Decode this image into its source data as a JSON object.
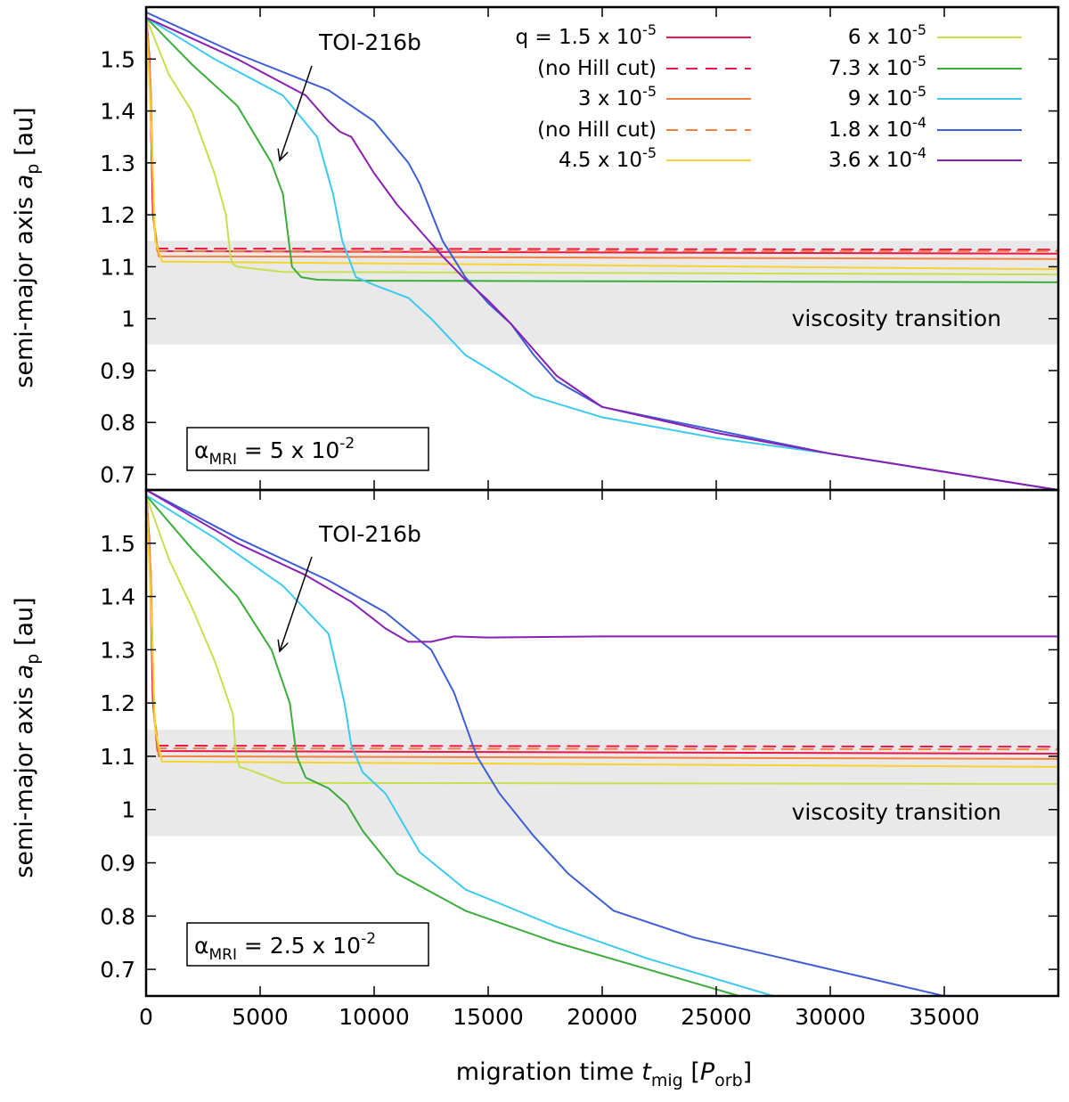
{
  "figure": {
    "xlabel_main": "migration time ",
    "xlabel_sym": "t",
    "xlabel_sub": "mig",
    "xlabel_unit_open": " [",
    "xlabel_unit_sym": "P",
    "xlabel_unit_sub": "orb",
    "xlabel_unit_close": "]",
    "ylabel_main": "semi-major axis ",
    "ylabel_sym": "a",
    "ylabel_sub": "p",
    "ylabel_unit": " [au]",
    "band_label": "viscosity transition",
    "arrow_label": "TOI-216b"
  },
  "legend": {
    "left": [
      {
        "label": "q = 1.5 x 10",
        "exp": "-5",
        "color": "#e8174c",
        "dash": "solid"
      },
      {
        "label": "(no Hill cut)",
        "exp": "",
        "color": "#e8174c",
        "dash": "dashed"
      },
      {
        "label": "3 x 10",
        "exp": "-5",
        "color": "#f2803f",
        "dash": "solid"
      },
      {
        "label": "(no Hill cut)",
        "exp": "",
        "color": "#f2803f",
        "dash": "dashed"
      },
      {
        "label": "4.5 x 10",
        "exp": "-5",
        "color": "#f8d42a",
        "dash": "solid"
      }
    ],
    "right": [
      {
        "label": "6 x 10",
        "exp": "-5",
        "color": "#c4e24e",
        "dash": "solid"
      },
      {
        "label": "7.3 x 10",
        "exp": "-5",
        "color": "#3aad3a",
        "dash": "solid"
      },
      {
        "label": "9 x 10",
        "exp": "-5",
        "color": "#3ccbef",
        "dash": "solid"
      },
      {
        "label": "1.8 x 10",
        "exp": "-4",
        "color": "#3d5ed6",
        "dash": "solid"
      },
      {
        "label": "3.6 x 10",
        "exp": "-4",
        "color": "#8a1fb4",
        "dash": "solid"
      }
    ]
  },
  "panels": [
    {
      "alpha_sym": "α",
      "alpha_sub": "MRI",
      "alpha_text": " = 5 x 10",
      "alpha_exp": "-2"
    },
    {
      "alpha_sym": "α",
      "alpha_sub": "MRI",
      "alpha_text": " = 2.5 x 10",
      "alpha_exp": "-2"
    }
  ],
  "chart_data": [
    {
      "type": "line",
      "title": "",
      "xlabel": "migration time t_mig [P_orb]",
      "ylabel": "semi-major axis a_p [au]",
      "xlim": [
        0,
        40000
      ],
      "ylim": [
        0.67,
        1.6
      ],
      "xticks": [
        0,
        5000,
        10000,
        15000,
        20000,
        25000,
        30000,
        35000
      ],
      "yticks": [
        0.7,
        0.8,
        0.9,
        1,
        1.1,
        1.2,
        1.3,
        1.4,
        1.5
      ],
      "band": [
        0.95,
        1.15
      ],
      "annotation_point": [
        5800,
        1.3
      ],
      "series": [
        {
          "name": "q = 1.5e-5",
          "color": "#e8174c",
          "dash": "solid",
          "x": [
            0,
            150,
            300,
            500,
            40000
          ],
          "y": [
            1.59,
            1.5,
            1.2,
            1.13,
            1.125
          ]
        },
        {
          "name": "q = 1.5e-5 (no Hill cut)",
          "color": "#e8174c",
          "dash": "dashed",
          "x": [
            0,
            150,
            300,
            500,
            40000
          ],
          "y": [
            1.59,
            1.5,
            1.2,
            1.135,
            1.133
          ]
        },
        {
          "name": "q = 3e-5",
          "color": "#f2803f",
          "dash": "solid",
          "x": [
            0,
            200,
            350,
            550,
            40000
          ],
          "y": [
            1.59,
            1.45,
            1.18,
            1.12,
            1.115
          ]
        },
        {
          "name": "q = 3e-5 (no Hill cut)",
          "color": "#f2803f",
          "dash": "dashed",
          "x": [
            0,
            200,
            350,
            550,
            40000
          ],
          "y": [
            1.59,
            1.45,
            1.18,
            1.13,
            1.13
          ]
        },
        {
          "name": "q = 4.5e-5",
          "color": "#f8d42a",
          "dash": "solid",
          "x": [
            0,
            200,
            400,
            700,
            40000
          ],
          "y": [
            1.59,
            1.4,
            1.15,
            1.11,
            1.095
          ]
        },
        {
          "name": "q = 6e-5",
          "color": "#c4e24e",
          "dash": "solid",
          "x": [
            0,
            1000,
            2000,
            3000,
            3500,
            3700,
            3800,
            4000,
            6000,
            40000
          ],
          "y": [
            1.58,
            1.47,
            1.4,
            1.28,
            1.2,
            1.12,
            1.105,
            1.1,
            1.09,
            1.085
          ]
        },
        {
          "name": "q = 7.3e-5",
          "color": "#3aad3a",
          "dash": "solid",
          "x": [
            0,
            2000,
            4000,
            5500,
            6000,
            6200,
            6400,
            6800,
            7500,
            10000,
            40000
          ],
          "y": [
            1.58,
            1.49,
            1.41,
            1.3,
            1.24,
            1.17,
            1.1,
            1.08,
            1.075,
            1.073,
            1.07
          ]
        },
        {
          "name": "q = 9e-5",
          "color": "#3ccbef",
          "dash": "solid",
          "x": [
            0,
            3000,
            6000,
            7500,
            8200,
            8600,
            9200,
            10000,
            11500,
            12500,
            14000,
            17000,
            20000,
            25000,
            30000,
            35000,
            40000
          ],
          "y": [
            1.58,
            1.5,
            1.43,
            1.35,
            1.24,
            1.15,
            1.08,
            1.065,
            1.04,
            1.0,
            0.93,
            0.85,
            0.81,
            0.77,
            0.74,
            0.705,
            0.67
          ]
        },
        {
          "name": "q = 1.8e-4",
          "color": "#3d5ed6",
          "dash": "solid",
          "x": [
            0,
            4000,
            8000,
            10000,
            11500,
            12000,
            13000,
            14000,
            15000,
            16000,
            17000,
            18000,
            20000,
            25000,
            30000,
            35000,
            40000
          ],
          "y": [
            1.59,
            1.51,
            1.44,
            1.38,
            1.3,
            1.26,
            1.15,
            1.08,
            1.03,
            0.99,
            0.93,
            0.88,
            0.83,
            0.785,
            0.74,
            0.705,
            0.67
          ]
        },
        {
          "name": "q = 3.6e-4",
          "color": "#8a1fb4",
          "dash": "solid",
          "x": [
            0,
            4000,
            7000,
            8000,
            8500,
            9000,
            10000,
            11000,
            12000,
            13000,
            14000,
            15000,
            16000,
            18000,
            20000,
            25000,
            30000,
            35000,
            40000
          ],
          "y": [
            1.58,
            1.5,
            1.43,
            1.38,
            1.36,
            1.35,
            1.28,
            1.22,
            1.17,
            1.12,
            1.075,
            1.035,
            0.99,
            0.89,
            0.83,
            0.78,
            0.74,
            0.705,
            0.67
          ]
        }
      ]
    },
    {
      "type": "line",
      "title": "",
      "xlabel": "migration time t_mig [P_orb]",
      "ylabel": "semi-major axis a_p [au]",
      "xlim": [
        0,
        40000
      ],
      "ylim": [
        0.65,
        1.6
      ],
      "xticks": [
        0,
        5000,
        10000,
        15000,
        20000,
        25000,
        30000,
        35000
      ],
      "yticks": [
        0.7,
        0.8,
        0.9,
        1,
        1.1,
        1.2,
        1.3,
        1.4,
        1.5
      ],
      "band": [
        0.95,
        1.15
      ],
      "annotation_point": [
        5800,
        1.3
      ],
      "series": [
        {
          "name": "q = 1.5e-5",
          "color": "#e8174c",
          "dash": "solid",
          "x": [
            0,
            150,
            300,
            500,
            40000
          ],
          "y": [
            1.6,
            1.5,
            1.2,
            1.11,
            1.105
          ]
        },
        {
          "name": "q = 1.5e-5 (no Hill cut)",
          "color": "#e8174c",
          "dash": "dashed",
          "x": [
            0,
            150,
            300,
            500,
            40000
          ],
          "y": [
            1.6,
            1.5,
            1.2,
            1.12,
            1.118
          ]
        },
        {
          "name": "q = 3e-5",
          "color": "#f2803f",
          "dash": "solid",
          "x": [
            0,
            200,
            350,
            550,
            40000
          ],
          "y": [
            1.6,
            1.45,
            1.18,
            1.1,
            1.095
          ]
        },
        {
          "name": "q = 3e-5 (no Hill cut)",
          "color": "#f2803f",
          "dash": "dashed",
          "x": [
            0,
            200,
            350,
            550,
            40000
          ],
          "y": [
            1.6,
            1.45,
            1.18,
            1.115,
            1.113
          ]
        },
        {
          "name": "q = 4.5e-5",
          "color": "#f8d42a",
          "dash": "solid",
          "x": [
            0,
            200,
            400,
            700,
            40000
          ],
          "y": [
            1.6,
            1.4,
            1.15,
            1.09,
            1.08
          ]
        },
        {
          "name": "q = 6e-5",
          "color": "#c4e24e",
          "dash": "solid",
          "x": [
            0,
            1000,
            2000,
            3000,
            3800,
            3950,
            4100,
            4500,
            6000,
            40000
          ],
          "y": [
            1.59,
            1.47,
            1.38,
            1.28,
            1.18,
            1.1,
            1.08,
            1.075,
            1.05,
            1.048
          ]
        },
        {
          "name": "q = 7.3e-5",
          "color": "#3aad3a",
          "dash": "solid",
          "x": [
            0,
            2000,
            4000,
            5500,
            6300,
            6600,
            7000,
            8000,
            8800,
            9500,
            11000,
            14000,
            18000,
            22000,
            26000
          ],
          "y": [
            1.59,
            1.49,
            1.4,
            1.3,
            1.2,
            1.1,
            1.06,
            1.04,
            1.01,
            0.96,
            0.88,
            0.81,
            0.75,
            0.7,
            0.65
          ]
        },
        {
          "name": "q = 9e-5",
          "color": "#3ccbef",
          "dash": "solid",
          "x": [
            0,
            3000,
            6000,
            8000,
            8700,
            9000,
            9500,
            10500,
            12000,
            14000,
            18000,
            22000,
            27500
          ],
          "y": [
            1.59,
            1.51,
            1.42,
            1.33,
            1.2,
            1.12,
            1.07,
            1.03,
            0.92,
            0.85,
            0.78,
            0.72,
            0.65
          ]
        },
        {
          "name": "q = 1.8e-4",
          "color": "#3d5ed6",
          "dash": "solid",
          "x": [
            0,
            4000,
            8000,
            10500,
            12500,
            13500,
            14500,
            15500,
            17000,
            18500,
            20500,
            24000,
            30000,
            35000
          ],
          "y": [
            1.6,
            1.51,
            1.43,
            1.37,
            1.3,
            1.22,
            1.1,
            1.03,
            0.95,
            0.88,
            0.81,
            0.76,
            0.7,
            0.65
          ]
        },
        {
          "name": "q = 3.6e-4",
          "color": "#8a1fb4",
          "dash": "solid",
          "x": [
            0,
            4000,
            7000,
            9000,
            10500,
            11500,
            12500,
            13500,
            15000,
            20000,
            30000,
            40000
          ],
          "y": [
            1.6,
            1.5,
            1.44,
            1.39,
            1.34,
            1.315,
            1.315,
            1.325,
            1.323,
            1.325,
            1.325,
            1.325
          ]
        }
      ]
    }
  ]
}
